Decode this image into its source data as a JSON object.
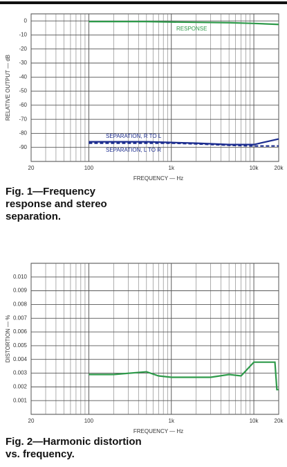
{
  "chart_data": [
    {
      "type": "line",
      "xscale": "log",
      "xlabel": "FREQUENCY — Hz",
      "ylabel": "RELATIVE OUTPUT — dB",
      "xlim": [
        20,
        20000
      ],
      "xticks": [
        20,
        100,
        {
          "value": 1000,
          "label": "1k"
        },
        {
          "value": 10000,
          "label": "10k"
        },
        {
          "value": 20000,
          "label": "20k"
        }
      ],
      "ylim": [
        -100,
        5
      ],
      "yticks": [
        0,
        -10,
        -20,
        -30,
        -40,
        -50,
        -60,
        -70,
        -80,
        -90
      ],
      "grid": true,
      "caption": "Fig. 1—Frequency response and stereo separation.",
      "series": [
        {
          "name": "RESPONSE",
          "color": "#2e9a4a",
          "dashed": false,
          "x": [
            100,
            200,
            500,
            1000,
            2000,
            5000,
            10000,
            20000
          ],
          "values": [
            -0.5,
            -0.5,
            -0.5,
            -0.8,
            -1,
            -1.3,
            -1.8,
            -2.5
          ]
        },
        {
          "name": "SEPARATION, R TO L",
          "color": "#1c2d8f",
          "dashed": false,
          "x": [
            100,
            500,
            1000,
            2000,
            5000,
            10000,
            20000
          ],
          "values": [
            -86,
            -86,
            -86.5,
            -87,
            -88,
            -88,
            -84
          ]
        },
        {
          "name": "SEPARATION, L TO R",
          "color": "#1c2d8f",
          "dashed": true,
          "x": [
            100,
            500,
            1000,
            2000,
            5000,
            10000,
            20000
          ],
          "values": [
            -87,
            -87,
            -87,
            -87.5,
            -88.5,
            -89,
            -89
          ]
        }
      ]
    },
    {
      "type": "line",
      "xscale": "log",
      "xlabel": "FREQUENCY — Hz",
      "ylabel": "DISTORTION — %",
      "xlim": [
        20,
        20000
      ],
      "xticks": [
        20,
        100,
        {
          "value": 1000,
          "label": "1k"
        },
        {
          "value": 10000,
          "label": "10k"
        },
        {
          "value": 20000,
          "label": "20k"
        }
      ],
      "ylim": [
        0,
        0.011
      ],
      "yticks": [
        {
          "value": 0.01,
          "label": "0.010"
        },
        0.009,
        0.008,
        0.007,
        0.006,
        0.005,
        0.004,
        0.003,
        0.002,
        0.001
      ],
      "grid": true,
      "caption": "Fig. 2—Harmonic distortion vs. frequency.",
      "series": [
        {
          "color": "#2e9a4a",
          "dashed": false,
          "x": [
            100,
            200,
            500,
            700,
            1000,
            3000,
            5000,
            7000,
            10000,
            18000,
            19000,
            20000
          ],
          "values": [
            0.0029,
            0.0029,
            0.0031,
            0.0028,
            0.0027,
            0.0027,
            0.0029,
            0.0028,
            0.0038,
            0.0038,
            0.0018,
            0.0018
          ]
        }
      ]
    }
  ]
}
